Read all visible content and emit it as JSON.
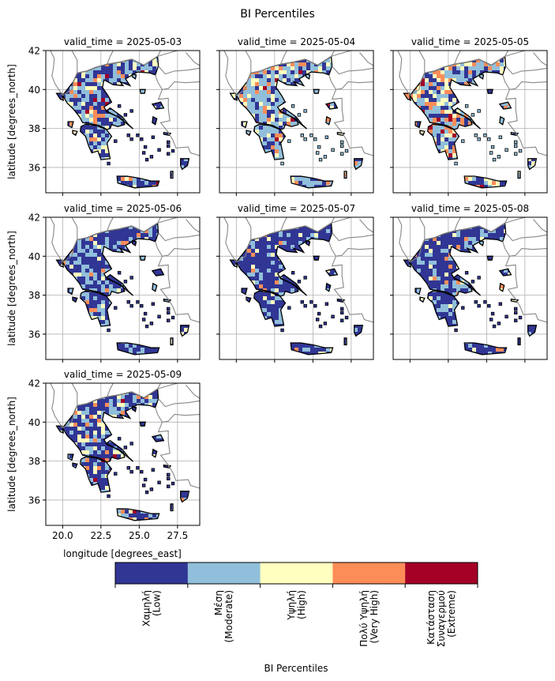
{
  "figure": {
    "title": "BI Percentiles",
    "ylabel": "latitude [degrees_north]",
    "xlabel": "longitude [degrees_east]",
    "x_ticks": [
      "20.0",
      "22.5",
      "25.0",
      "27.5"
    ],
    "y_ticks": [
      "36",
      "38",
      "40",
      "42"
    ]
  },
  "panels": [
    {
      "label": "valid_time = 2025-05-03",
      "dominant": "Low",
      "coverage": {
        "Low": 0.42,
        "Moderate": 0.35,
        "High": 0.13,
        "Very High": 0.08,
        "Extreme": 0.02
      }
    },
    {
      "label": "valid_time = 2025-05-04",
      "dominant": "Moderate",
      "coverage": {
        "Low": 0.3,
        "Moderate": 0.4,
        "High": 0.15,
        "Very High": 0.12,
        "Extreme": 0.03
      }
    },
    {
      "label": "valid_time = 2025-05-05",
      "dominant": "Moderate",
      "coverage": {
        "Low": 0.28,
        "Moderate": 0.32,
        "High": 0.18,
        "Very High": 0.17,
        "Extreme": 0.05
      }
    },
    {
      "label": "valid_time = 2025-05-06",
      "dominant": "Low",
      "coverage": {
        "Low": 0.62,
        "Moderate": 0.28,
        "High": 0.06,
        "Very High": 0.04,
        "Extreme": 0.0
      }
    },
    {
      "label": "valid_time = 2025-05-07",
      "dominant": "Low",
      "coverage": {
        "Low": 0.7,
        "Moderate": 0.22,
        "High": 0.05,
        "Very High": 0.03,
        "Extreme": 0.0
      }
    },
    {
      "label": "valid_time = 2025-05-08",
      "dominant": "Low",
      "coverage": {
        "Low": 0.66,
        "Moderate": 0.24,
        "High": 0.06,
        "Very High": 0.04,
        "Extreme": 0.0
      }
    },
    {
      "label": "valid_time = 2025-05-09",
      "dominant": "Low",
      "coverage": {
        "Low": 0.55,
        "Moderate": 0.28,
        "High": 0.1,
        "Very High": 0.06,
        "Extreme": 0.01
      }
    }
  ],
  "colorbar": {
    "label": "BI Percentiles",
    "categories": [
      {
        "key": "Low",
        "color": "#313695",
        "lines": [
          "Χαμηλή",
          "(Low)"
        ]
      },
      {
        "key": "Moderate",
        "color": "#91bfdb",
        "lines": [
          "Μέση",
          "(Moderate)"
        ]
      },
      {
        "key": "High",
        "color": "#ffffbf",
        "lines": [
          "Υψηλή",
          "(High)"
        ]
      },
      {
        "key": "Very High",
        "color": "#fc8d59",
        "lines": [
          "Πολύ Υψηλή",
          "(Very High)"
        ]
      },
      {
        "key": "Extreme",
        "color": "#a50026",
        "lines": [
          "Κατάσταση",
          "Συναγερμού",
          "(Extreme)"
        ]
      }
    ]
  },
  "colors": {
    "border": "#888888",
    "coast": "#000000",
    "grid": "#b0b0b0"
  }
}
